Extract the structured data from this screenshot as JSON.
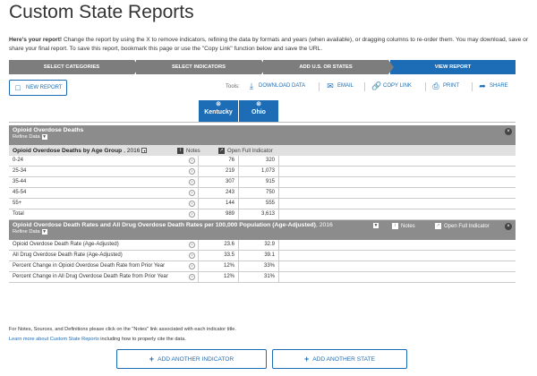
{
  "page": {
    "title": "Custom State Reports",
    "intro_bold": "Here's your report!",
    "intro_text": " Change the report by using the X to remove indicators, refining the data by formats and years (when available), or dragging columns to re-order them.  You may download, save or share your final report. To save this report, bookmark this page or use the \"Copy Link\" function below and save the URL."
  },
  "steps": [
    "SELECT CATEGORIES",
    "SELECT INDICATORS",
    "ADD U.S. OR STATES",
    "VIEW REPORT"
  ],
  "toolbar": {
    "new_report": "NEW REPORT",
    "tools_label": "Tools:",
    "download": "DOWNLOAD DATA",
    "email": "EMAIL",
    "copy_link": "COPY LINK",
    "print": "PRINT",
    "share": "SHARE"
  },
  "columns": [
    "Kentucky",
    "Ohio"
  ],
  "category": {
    "title": "Opioid Overdose Deaths",
    "refine": "Refine Data"
  },
  "indicator1": {
    "title": "Opioid Overdose Deaths by Age Group",
    "year": ", 2016",
    "notes": "Notes",
    "open_full": "Open Full Indicator",
    "rows": [
      {
        "label": "0-24",
        "ky": "76",
        "oh": "320"
      },
      {
        "label": "25-34",
        "ky": "219",
        "oh": "1,073"
      },
      {
        "label": "35-44",
        "ky": "307",
        "oh": "915"
      },
      {
        "label": "45-54",
        "ky": "243",
        "oh": "750"
      },
      {
        "label": "55+",
        "ky": "144",
        "oh": "555"
      },
      {
        "label": "Total",
        "ky": "989",
        "oh": "3,613"
      }
    ]
  },
  "indicator2": {
    "title": "Opioid Overdose Death Rates and All Drug Overdose Death Rates per 100,000 Population (Age-Adjusted)",
    "year": ", 2016",
    "notes": "Notes",
    "open_full": "Open Full Indicator",
    "refine": "Refine Data",
    "rows": [
      {
        "label": "Opioid Overdose Death Rate (Age-Adjusted)",
        "ky": "23.6",
        "oh": "32.9"
      },
      {
        "label": "All Drug Overdose Death Rate (Age-Adjusted)",
        "ky": "33.5",
        "oh": "39.1"
      },
      {
        "label": "Percent Change in Opioid Overdose Death Rate from Prior Year",
        "ky": "12%",
        "oh": "33%"
      },
      {
        "label": "Percent Change in All Drug Overdose Death Rate from Prior Year",
        "ky": "12%",
        "oh": "31%"
      }
    ]
  },
  "footer": {
    "note1": "For Notes, Sources, and Definitions please click on the \"Notes\" link associated with each indicator title.",
    "note2_link": "Learn more about Custom State Reports",
    "note2_rest": " including how to properly cite the data.",
    "add_indicator": "ADD ANOTHER INDICATOR",
    "add_state": "ADD ANOTHER STATE"
  },
  "colors": {
    "accent": "#1c6db5",
    "step_inactive": "#7d7d7d",
    "header_gray": "#8c8c8c"
  }
}
